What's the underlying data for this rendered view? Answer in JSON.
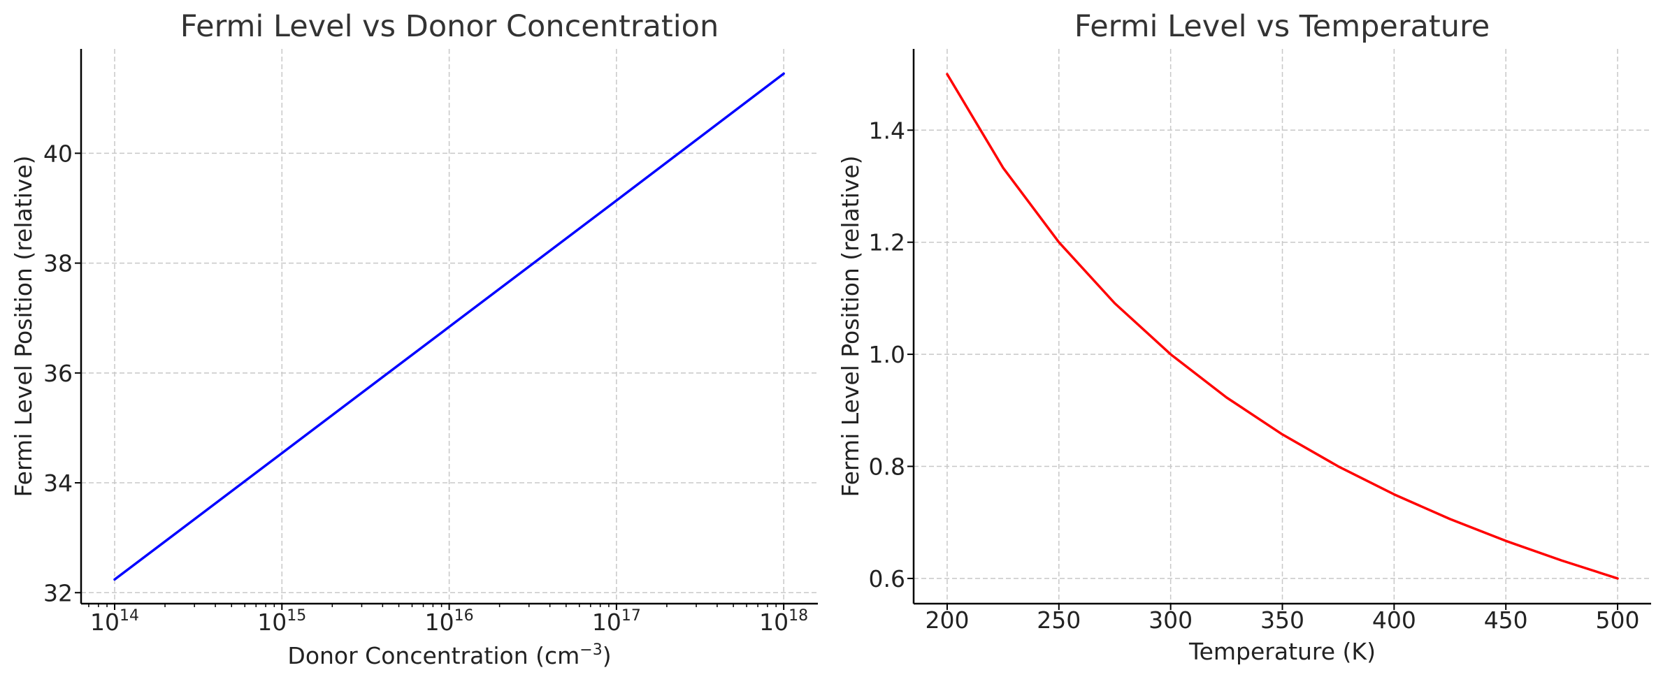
{
  "chart_data": [
    {
      "type": "line",
      "title": "Fermi Level vs Donor Concentration",
      "xlabel": "Donor Concentration (cm",
      "xlabel_sup": "−3",
      "xlabel_suffix": ")",
      "ylabel": "Fermi Level Position (relative)",
      "xscale": "log",
      "xlim": [
        63000000000000.0,
        1.6e+18
      ],
      "ylim": [
        31.8,
        41.9
      ],
      "x_ticks": [
        {
          "value": 100000000000000.0,
          "base": "10",
          "exp": "14"
        },
        {
          "value": 1000000000000000.0,
          "base": "10",
          "exp": "15"
        },
        {
          "value": 1e+16,
          "base": "10",
          "exp": "16"
        },
        {
          "value": 1e+17,
          "base": "10",
          "exp": "17"
        },
        {
          "value": 1e+18,
          "base": "10",
          "exp": "18"
        }
      ],
      "y_ticks": [
        {
          "value": 32,
          "label": "32"
        },
        {
          "value": 34,
          "label": "34"
        },
        {
          "value": 36,
          "label": "36"
        },
        {
          "value": 38,
          "label": "38"
        },
        {
          "value": 40,
          "label": "40"
        }
      ],
      "grid": true,
      "series": [
        {
          "color": "#0000ff",
          "x": [
            100000000000000.0,
            1000000000000000.0,
            1e+16,
            1e+17,
            1e+18
          ],
          "y": [
            32.24,
            34.54,
            36.84,
            39.14,
            41.45
          ]
        }
      ]
    },
    {
      "type": "line",
      "title": "Fermi Level vs Temperature",
      "xlabel": "Temperature (K)",
      "ylabel": "Fermi Level Position (relative)",
      "xscale": "linear",
      "xlim": [
        185,
        515
      ],
      "ylim": [
        0.555,
        1.545
      ],
      "x_ticks": [
        {
          "value": 200,
          "label": "200"
        },
        {
          "value": 250,
          "label": "250"
        },
        {
          "value": 300,
          "label": "300"
        },
        {
          "value": 350,
          "label": "350"
        },
        {
          "value": 400,
          "label": "400"
        },
        {
          "value": 450,
          "label": "450"
        },
        {
          "value": 500,
          "label": "500"
        }
      ],
      "y_ticks": [
        {
          "value": 0.6,
          "label": "0.6"
        },
        {
          "value": 0.8,
          "label": "0.8"
        },
        {
          "value": 1.0,
          "label": "1.0"
        },
        {
          "value": 1.2,
          "label": "1.2"
        },
        {
          "value": 1.4,
          "label": "1.4"
        }
      ],
      "grid": true,
      "series": [
        {
          "color": "#ff0000",
          "x": [
            200,
            225,
            250,
            275,
            300,
            325,
            350,
            375,
            400,
            425,
            450,
            475,
            500
          ],
          "y": [
            1.5,
            1.333,
            1.2,
            1.091,
            1.0,
            0.923,
            0.857,
            0.8,
            0.75,
            0.706,
            0.667,
            0.632,
            0.6
          ]
        }
      ]
    }
  ]
}
